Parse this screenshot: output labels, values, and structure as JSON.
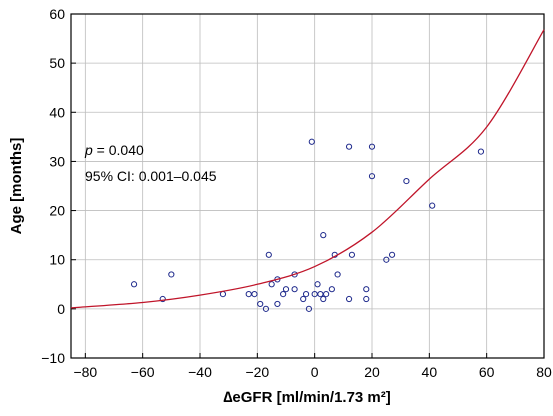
{
  "chart_data": {
    "type": "scatter",
    "title": "",
    "xlabel": "∆eGFR [ml/min/1.73 m²]",
    "ylabel": "Age [months]",
    "xlim": [
      -85,
      80
    ],
    "ylim": [
      -10,
      60
    ],
    "xticks": [
      -80,
      -60,
      -40,
      -20,
      0,
      20,
      40,
      60,
      80
    ],
    "yticks": [
      -10,
      0,
      10,
      20,
      30,
      40,
      50,
      60
    ],
    "xtick_labels": [
      "−80",
      "−60",
      "−40",
      "−20",
      "0",
      "20",
      "40",
      "60",
      "80"
    ],
    "ytick_labels": [
      "−10",
      "0",
      "10",
      "20",
      "30",
      "40",
      "50",
      "60"
    ],
    "grid": true,
    "annotations": {
      "p_label": "p",
      "p_value": " = 0.040",
      "ci": "95% CI: 0.001–0.045"
    },
    "colors": {
      "points": "#1f2a8c",
      "curve": "#c0152a",
      "grid": "#bdbdbd"
    },
    "points": [
      {
        "x": -63,
        "y": 5
      },
      {
        "x": -53,
        "y": 2
      },
      {
        "x": -50,
        "y": 7
      },
      {
        "x": -32,
        "y": 3
      },
      {
        "x": -23,
        "y": 3
      },
      {
        "x": -21,
        "y": 3
      },
      {
        "x": -19,
        "y": 1
      },
      {
        "x": -17,
        "y": 0
      },
      {
        "x": -16,
        "y": 11
      },
      {
        "x": -15,
        "y": 5
      },
      {
        "x": -13,
        "y": 6
      },
      {
        "x": -13,
        "y": 1
      },
      {
        "x": -11,
        "y": 3
      },
      {
        "x": -10,
        "y": 4
      },
      {
        "x": -7,
        "y": 7
      },
      {
        "x": -7,
        "y": 4
      },
      {
        "x": -4,
        "y": 2
      },
      {
        "x": -3,
        "y": 3
      },
      {
        "x": -2,
        "y": 0
      },
      {
        "x": -1,
        "y": 34
      },
      {
        "x": 0,
        "y": 3
      },
      {
        "x": 1,
        "y": 5
      },
      {
        "x": 2,
        "y": 3
      },
      {
        "x": 3,
        "y": 15
      },
      {
        "x": 3,
        "y": 2
      },
      {
        "x": 4,
        "y": 3
      },
      {
        "x": 6,
        "y": 4
      },
      {
        "x": 7,
        "y": 11
      },
      {
        "x": 8,
        "y": 7
      },
      {
        "x": 12,
        "y": 33
      },
      {
        "x": 12,
        "y": 2
      },
      {
        "x": 13,
        "y": 11
      },
      {
        "x": 18,
        "y": 4
      },
      {
        "x": 18,
        "y": 2
      },
      {
        "x": 20,
        "y": 33
      },
      {
        "x": 20,
        "y": 27
      },
      {
        "x": 25,
        "y": 10
      },
      {
        "x": 27,
        "y": 11
      },
      {
        "x": 32,
        "y": 26
      },
      {
        "x": 41,
        "y": 21
      },
      {
        "x": 58,
        "y": 32
      }
    ],
    "curve_samples": [
      {
        "x": -85,
        "y": 0.2
      },
      {
        "x": -60,
        "y": 1.3
      },
      {
        "x": -40,
        "y": 2.8
      },
      {
        "x": -20,
        "y": 5.0
      },
      {
        "x": 0,
        "y": 8.6
      },
      {
        "x": 20,
        "y": 15.6
      },
      {
        "x": 40,
        "y": 26.4
      },
      {
        "x": 60,
        "y": 37.0
      },
      {
        "x": 80,
        "y": 56.8
      }
    ]
  }
}
